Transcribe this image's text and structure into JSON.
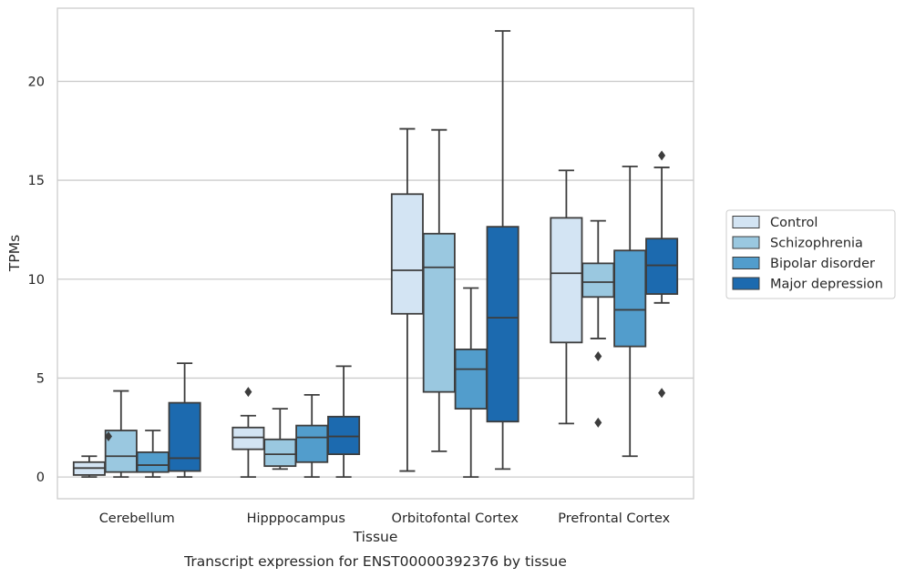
{
  "chart_data": {
    "type": "boxplot",
    "caption": "Transcript expression for ENST00000392376 by tissue",
    "xlabel": "Tissue",
    "ylabel": "TPMs",
    "ylim": [
      -1.1,
      23.7
    ],
    "yticks": [
      0,
      5,
      10,
      15,
      20
    ],
    "grid": "horizontal",
    "legend_position": "right",
    "categories": [
      "Cerebellum",
      "Hipppocampus",
      "Orbitofontal Cortex",
      "Prefrontal Cortex"
    ],
    "series": [
      {
        "name": "Control",
        "color": "#d3e4f3",
        "boxes": [
          {
            "whislo": 0.0,
            "q1": 0.1,
            "med": 0.45,
            "q3": 0.75,
            "whishi": 1.05,
            "fliers": []
          },
          {
            "whislo": 0.0,
            "q1": 1.4,
            "med": 2.0,
            "q3": 2.5,
            "whishi": 3.1,
            "fliers": [
              4.3
            ]
          },
          {
            "whislo": 0.3,
            "q1": 8.25,
            "med": 10.45,
            "q3": 14.3,
            "whishi": 17.6,
            "fliers": []
          },
          {
            "whislo": 2.7,
            "q1": 6.8,
            "med": 10.3,
            "q3": 13.1,
            "whishi": 15.5,
            "fliers": []
          }
        ]
      },
      {
        "name": "Schizophrenia",
        "color": "#9ac8e0",
        "boxes": [
          {
            "whislo": 0.0,
            "q1": 0.25,
            "med": 1.05,
            "q3": 2.35,
            "whishi": 4.35,
            "fliers": []
          },
          {
            "whislo": 0.4,
            "q1": 0.55,
            "med": 1.15,
            "q3": 1.9,
            "whishi": 3.45,
            "fliers": []
          },
          {
            "whislo": 1.3,
            "q1": 4.3,
            "med": 10.6,
            "q3": 12.3,
            "whishi": 17.55,
            "fliers": []
          },
          {
            "whislo": 7.0,
            "q1": 9.1,
            "med": 9.85,
            "q3": 10.8,
            "whishi": 12.95,
            "fliers": [
              6.1,
              2.75
            ]
          }
        ]
      },
      {
        "name": "Bipolar disorder",
        "color": "#529dcc",
        "boxes": [
          {
            "whislo": 0.0,
            "q1": 0.25,
            "med": 0.6,
            "q3": 1.25,
            "whishi": 2.35,
            "fliers": []
          },
          {
            "whislo": 0.0,
            "q1": 0.75,
            "med": 2.0,
            "q3": 2.6,
            "whishi": 4.15,
            "fliers": []
          },
          {
            "whislo": 0.0,
            "q1": 3.45,
            "med": 5.45,
            "q3": 6.45,
            "whishi": 9.55,
            "fliers": []
          },
          {
            "whislo": 1.05,
            "q1": 6.6,
            "med": 8.45,
            "q3": 11.45,
            "whishi": 15.7,
            "fliers": []
          }
        ]
      },
      {
        "name": "Major depression",
        "color": "#1c6aaf",
        "boxes": [
          {
            "whislo": 0.0,
            "q1": 0.3,
            "med": 0.95,
            "q3": 3.75,
            "whishi": 5.75,
            "fliers": []
          },
          {
            "whislo": 0.0,
            "q1": 1.15,
            "med": 2.05,
            "q3": 3.05,
            "whishi": 5.6,
            "fliers": []
          },
          {
            "whislo": 0.4,
            "q1": 2.8,
            "med": 8.05,
            "q3": 12.65,
            "whishi": 22.55,
            "fliers": []
          },
          {
            "whislo": 8.8,
            "q1": 9.25,
            "med": 10.7,
            "q3": 12.05,
            "whishi": 15.65,
            "fliers": [
              16.25,
              4.25
            ]
          }
        ]
      }
    ],
    "extra_fliers": [
      {
        "category": 0,
        "series": 0,
        "value": 2.05
      }
    ]
  }
}
